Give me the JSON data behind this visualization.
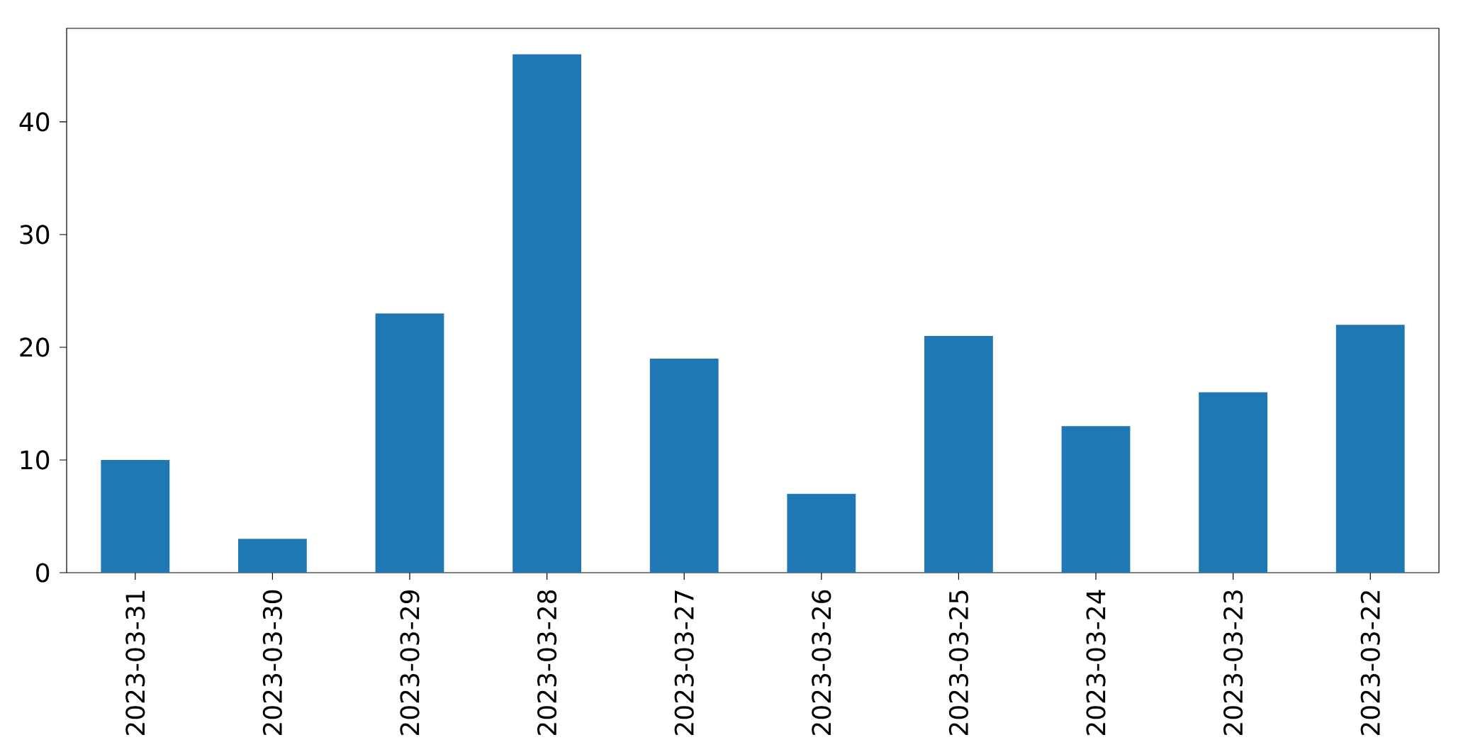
{
  "chart_data": {
    "type": "bar",
    "categories": [
      "2023-03-31",
      "2023-03-30",
      "2023-03-29",
      "2023-03-28",
      "2023-03-27",
      "2023-03-26",
      "2023-03-25",
      "2023-03-24",
      "2023-03-23",
      "2023-03-22"
    ],
    "values": [
      10,
      3,
      23,
      46,
      19,
      7,
      21,
      13,
      16,
      22
    ],
    "color": "#1f77b4",
    "ylim": [
      0,
      48.3
    ],
    "yticks": [
      0,
      10,
      20,
      30,
      40
    ]
  }
}
